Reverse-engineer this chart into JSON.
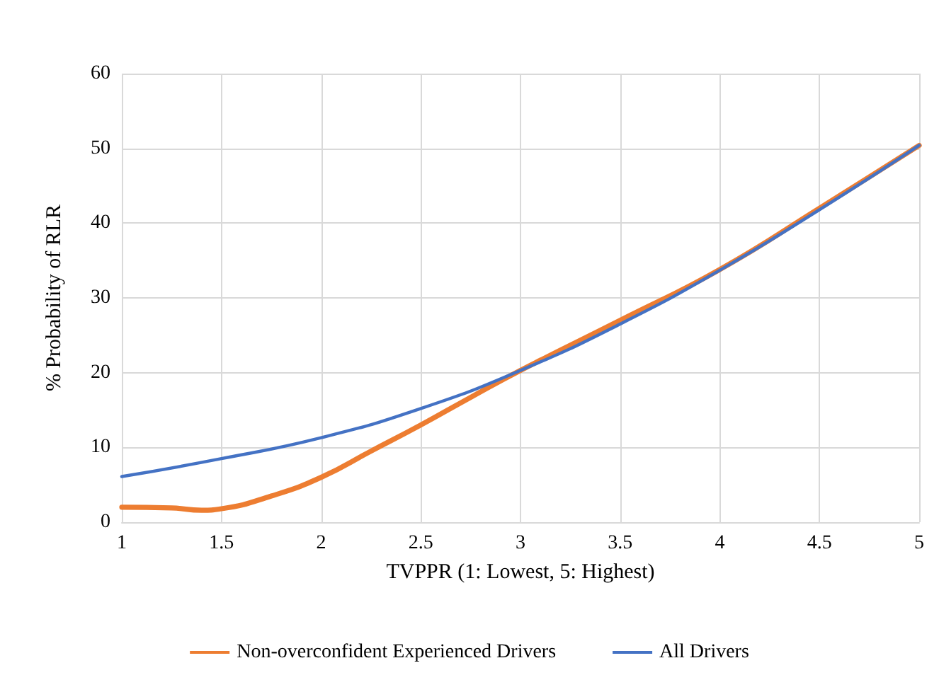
{
  "chart_data": {
    "type": "line",
    "xlabel": "TVPPR (1: Lowest, 5: Highest)",
    "ylabel": "% Probability of RLR",
    "series": [
      {
        "name": "Non-overconfident Experienced Drivers",
        "color": "#ed7d31",
        "x": [
          1,
          1.25,
          1.4,
          1.5,
          1.75,
          2,
          2.25,
          2.5,
          2.75,
          3,
          3.5,
          4,
          4.5,
          5
        ],
        "values": [
          2.0,
          1.9,
          1.6,
          1.8,
          3.5,
          6,
          9.5,
          13,
          16.7,
          20.3,
          27,
          33.8,
          42,
          50.4
        ]
      },
      {
        "name": "All Drivers",
        "color": "#4472c4",
        "x": [
          1,
          1.5,
          2,
          2.5,
          3,
          3.5,
          4,
          4.5,
          5
        ],
        "values": [
          6.1,
          8.5,
          11.3,
          15.2,
          20.3,
          26.5,
          33.7,
          41.8,
          50.4
        ]
      }
    ],
    "xlim": [
      1,
      5
    ],
    "xticks": [
      1,
      1.5,
      2,
      2.5,
      3,
      3.5,
      4,
      4.5,
      5
    ],
    "ylim": [
      0,
      60
    ],
    "yticks": [
      0,
      10,
      20,
      30,
      40,
      50,
      60
    ],
    "grid": true,
    "legend": "bottom",
    "marker": "none",
    "line_style": "solid"
  }
}
